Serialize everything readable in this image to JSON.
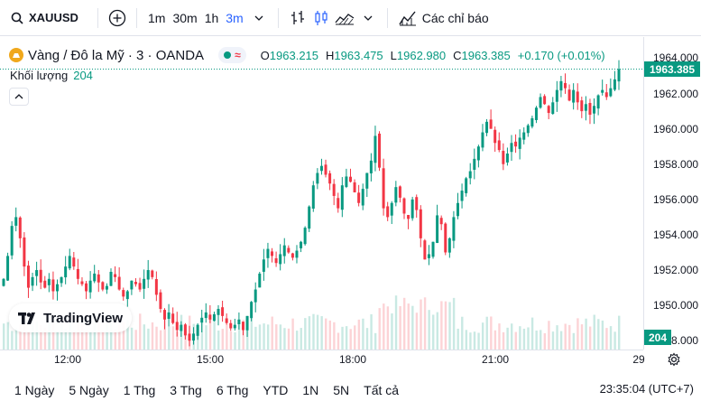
{
  "toolbar": {
    "symbol": "XAUUSD",
    "intervals": [
      "1m",
      "30m",
      "1h",
      "3m"
    ],
    "active_interval": "3m",
    "indicators_label": "Các chỉ báo"
  },
  "legend": {
    "title": "Vàng / Đô la Mỹ · 3 · OANDA",
    "open_label": "O",
    "open": "1963.215",
    "high_label": "H",
    "high": "1963.475",
    "low_label": "L",
    "low": "1962.980",
    "close_label": "C",
    "close": "1963.385",
    "change": "+0.170 (+0.01%)",
    "volume_label": "Khối lượng",
    "volume": "204"
  },
  "price_axis": {
    "ticks": [
      "1964.000",
      "1962.000",
      "1960.000",
      "1958.000",
      "1956.000",
      "1954.000",
      "1952.000",
      "1950.000",
      "1948.000"
    ],
    "last_price": "1963.385",
    "last_volume": "204"
  },
  "time_axis": {
    "ticks": [
      "12:00",
      "15:00",
      "18:00",
      "21:00",
      "29"
    ]
  },
  "bottom_bar": {
    "ranges": [
      "1 Ngày",
      "5 Ngày",
      "1 Thg",
      "3 Thg",
      "6 Thg",
      "YTD",
      "1N",
      "5N",
      "Tất cả"
    ],
    "clock": "23:35:04 (UTC+7)"
  },
  "logo": {
    "text": "TradingView"
  },
  "colors": {
    "up": "#089981",
    "down": "#f23645",
    "accent": "#2962ff"
  },
  "chart_data": {
    "type": "candlestick",
    "ylim": [
      1947.5,
      1965.2
    ],
    "x_ticks": [
      "12:00",
      "15:00",
      "18:00",
      "21:00"
    ],
    "close_path": [
      1951.5,
      1952.8,
      1954.5,
      1955.0,
      1953.8,
      1952.2,
      1951.0,
      1951.6,
      1952.0,
      1951.3,
      1951.0,
      1951.5,
      1950.8,
      1951.2,
      1951.6,
      1952.2,
      1952.8,
      1952.2,
      1951.5,
      1951.2,
      1950.8,
      1951.4,
      1951.8,
      1951.3,
      1950.9,
      1951.1,
      1951.9,
      1951.6,
      1950.9,
      1950.5,
      1950.8,
      1951.4,
      1951.2,
      1950.9,
      1951.5,
      1952.0,
      1951.6,
      1950.6,
      1949.8,
      1949.2,
      1949.6,
      1949.0,
      1948.6,
      1948.9,
      1948.3,
      1948.0,
      1948.4,
      1948.9,
      1949.3,
      1949.6,
      1949.2,
      1949.5,
      1949.8,
      1949.4,
      1949.0,
      1948.7,
      1948.9,
      1949.2,
      1948.6,
      1949.4,
      1950.2,
      1950.9,
      1951.8,
      1952.6,
      1953.2,
      1952.8,
      1952.4,
      1952.9,
      1953.4,
      1953.0,
      1952.7,
      1953.1,
      1953.6,
      1954.4,
      1955.6,
      1956.8,
      1957.5,
      1957.9,
      1957.4,
      1956.9,
      1956.2,
      1955.5,
      1956.8,
      1957.3,
      1957.0,
      1956.4,
      1955.8,
      1956.6,
      1957.5,
      1958.2,
      1959.6,
      1957.8,
      1955.5,
      1955.0,
      1955.8,
      1956.7,
      1956.1,
      1955.2,
      1954.9,
      1956.0,
      1955.4,
      1953.8,
      1952.6,
      1952.9,
      1953.6,
      1955.1,
      1954.6,
      1953.0,
      1953.8,
      1955.0,
      1955.8,
      1956.5,
      1957.2,
      1957.6,
      1958.3,
      1959.0,
      1959.8,
      1960.4,
      1960.0,
      1959.2,
      1958.8,
      1958.0,
      1958.6,
      1959.2,
      1959.0,
      1959.5,
      1959.8,
      1960.2,
      1960.6,
      1961.2,
      1961.8,
      1961.4,
      1960.9,
      1961.5,
      1962.2,
      1962.7,
      1962.3,
      1961.6,
      1962.2,
      1961.5,
      1961.0,
      1961.4,
      1960.8,
      1961.3,
      1961.9,
      1962.2,
      1961.8,
      1962.3,
      1962.8,
      1963.385
    ]
  }
}
